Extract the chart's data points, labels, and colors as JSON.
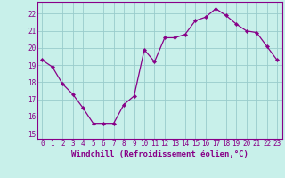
{
  "x": [
    0,
    1,
    2,
    3,
    4,
    5,
    6,
    7,
    8,
    9,
    10,
    11,
    12,
    13,
    14,
    15,
    16,
    17,
    18,
    19,
    20,
    21,
    22,
    23
  ],
  "y": [
    19.3,
    18.9,
    17.9,
    17.3,
    16.5,
    15.6,
    15.6,
    15.6,
    16.7,
    17.2,
    19.9,
    19.2,
    20.6,
    20.6,
    20.8,
    21.6,
    21.8,
    22.3,
    21.9,
    21.4,
    21.0,
    20.9,
    20.1,
    19.3
  ],
  "line_color": "#880088",
  "marker_color": "#880088",
  "bg_color": "#c8f0ea",
  "grid_color": "#99cccc",
  "axis_color": "#880088",
  "xlabel": "Windchill (Refroidissement éolien,°C)",
  "ylim": [
    14.7,
    22.7
  ],
  "xlim": [
    -0.5,
    23.5
  ],
  "yticks": [
    15,
    16,
    17,
    18,
    19,
    20,
    21,
    22
  ],
  "xticks": [
    0,
    1,
    2,
    3,
    4,
    5,
    6,
    7,
    8,
    9,
    10,
    11,
    12,
    13,
    14,
    15,
    16,
    17,
    18,
    19,
    20,
    21,
    22,
    23
  ],
  "tick_fontsize": 5.5,
  "xlabel_fontsize": 6.5
}
